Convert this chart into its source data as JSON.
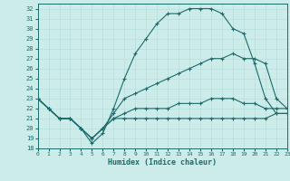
{
  "xlabel": "Humidex (Indice chaleur)",
  "bg_color": "#ccecea",
  "line_color": "#1a6b6b",
  "grid_color": "#b8dede",
  "xlim": [
    0,
    23
  ],
  "ylim": [
    18,
    32.5
  ],
  "xticks": [
    0,
    1,
    2,
    3,
    4,
    5,
    6,
    7,
    8,
    9,
    10,
    11,
    12,
    13,
    14,
    15,
    16,
    17,
    18,
    19,
    20,
    21,
    22,
    23
  ],
  "yticks": [
    18,
    19,
    20,
    21,
    22,
    23,
    24,
    25,
    26,
    27,
    28,
    29,
    30,
    31,
    32
  ],
  "line1_y": [
    23.0,
    22.0,
    21.0,
    21.0,
    20.0,
    18.5,
    19.5,
    22.0,
    25.0,
    27.5,
    29.0,
    30.5,
    31.5,
    31.5,
    32.0,
    32.0,
    32.0,
    31.5,
    30.0,
    29.5,
    26.5,
    23.0,
    21.5,
    21.5
  ],
  "line2_y": [
    23.0,
    22.0,
    21.0,
    21.0,
    20.0,
    19.0,
    20.0,
    21.5,
    23.0,
    23.5,
    24.0,
    24.5,
    25.0,
    25.5,
    26.0,
    26.5,
    27.0,
    27.0,
    27.5,
    27.0,
    27.0,
    26.5,
    23.0,
    22.0
  ],
  "line3_y": [
    23.0,
    22.0,
    21.0,
    21.0,
    20.0,
    19.0,
    20.0,
    21.0,
    21.5,
    22.0,
    22.0,
    22.0,
    22.0,
    22.5,
    22.5,
    22.5,
    23.0,
    23.0,
    23.0,
    22.5,
    22.5,
    22.0,
    22.0,
    22.0
  ],
  "line4_y": [
    23.0,
    22.0,
    21.0,
    21.0,
    20.0,
    19.0,
    20.0,
    21.0,
    21.0,
    21.0,
    21.0,
    21.0,
    21.0,
    21.0,
    21.0,
    21.0,
    21.0,
    21.0,
    21.0,
    21.0,
    21.0,
    21.0,
    21.5,
    21.5
  ]
}
